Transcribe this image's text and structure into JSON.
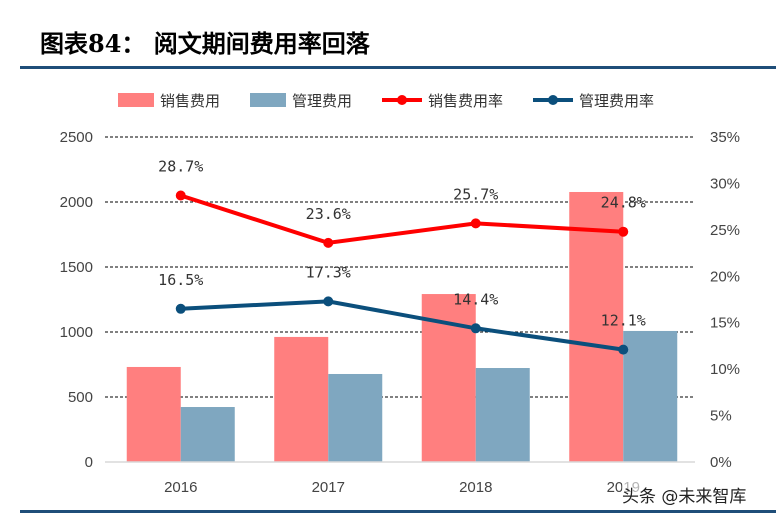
{
  "title": "图表84：  阅文期间费用率回落",
  "watermark": "头条 @未来智库",
  "chart_data": {
    "type": "bar+line",
    "categories": [
      "2016",
      "2017",
      "2018",
      "2019"
    ],
    "series": [
      {
        "name": "销售费用",
        "type": "bar",
        "axis": "left",
        "color": "#ff7f7f",
        "values": [
          731,
          962,
          1292,
          2077
        ]
      },
      {
        "name": "管理费用",
        "type": "bar",
        "axis": "left",
        "color": "#7fa7c0",
        "values": [
          423,
          677,
          723,
          1008
        ]
      },
      {
        "name": "销售费用率",
        "type": "line",
        "axis": "right",
        "color": "#ff0000",
        "values": [
          28.7,
          23.6,
          25.7,
          24.8
        ],
        "labels": [
          "28.7%",
          "23.6%",
          "25.7%",
          "24.8%"
        ]
      },
      {
        "name": "管理费用率",
        "type": "line",
        "axis": "right",
        "color": "#0b4f7c",
        "values": [
          16.5,
          17.3,
          14.4,
          12.1
        ],
        "labels": [
          "16.5%",
          "17.3%",
          "14.4%",
          "12.1%"
        ]
      }
    ],
    "left_axis": {
      "ylim": [
        0,
        2500
      ],
      "ticks": [
        "0",
        "500",
        "1000",
        "1500",
        "2000",
        "2500"
      ]
    },
    "right_axis": {
      "ylim": [
        0,
        35
      ],
      "ticks": [
        "0%",
        "5%",
        "10%",
        "15%",
        "20%",
        "25%",
        "30%",
        "35%"
      ]
    },
    "grid": "dashed horizontal",
    "legend": "top"
  }
}
